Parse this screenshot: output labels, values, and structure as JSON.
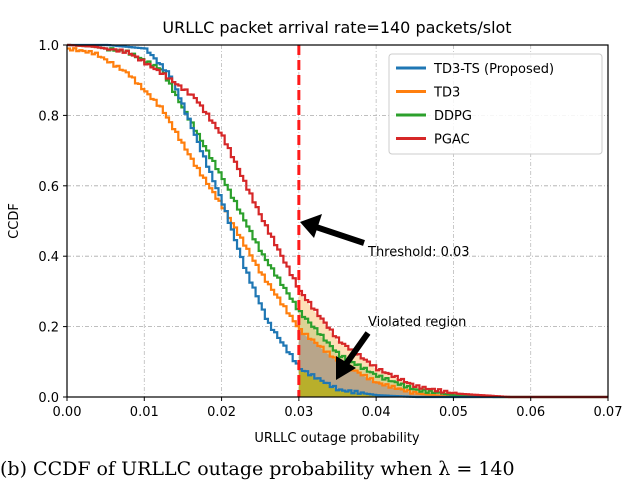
{
  "caption": "(b)  CCDF of URLLC outage probability when λ = 140",
  "chart_data": {
    "type": "line",
    "title": "URLLC packet arrival rate=140 packets/slot",
    "xlabel": "URLLC outage probability",
    "ylabel": "CCDF",
    "xlim": [
      0,
      0.07
    ],
    "ylim": [
      0,
      1.0
    ],
    "xticks": [
      "0.00",
      "0.01",
      "0.02",
      "0.03",
      "0.04",
      "0.05",
      "0.06",
      "0.07"
    ],
    "yticks": [
      "0.0",
      "0.2",
      "0.4",
      "0.6",
      "0.8",
      "1.0"
    ],
    "grid": true,
    "legend_position": "top-right",
    "threshold": 0.03,
    "annotations": {
      "threshold": "Threshold: 0.03",
      "violated": "Violated region"
    },
    "series": [
      {
        "name": "TD3-TS (Proposed)",
        "color": "#1f77b4",
        "x": [
          0,
          0.005,
          0.01,
          0.0133,
          0.0163,
          0.02,
          0.0228,
          0.0259,
          0.03,
          0.035,
          0.04,
          0.045,
          0.07
        ],
        "y": [
          1.0,
          1.0,
          0.99,
          0.91,
          0.75,
          0.55,
          0.37,
          0.21,
          0.08,
          0.02,
          0.005,
          0.0,
          0.0
        ]
      },
      {
        "name": "TD3",
        "color": "#ff7f0e",
        "x": [
          0,
          0.0034,
          0.0077,
          0.0121,
          0.0164,
          0.02,
          0.025,
          0.03,
          0.035,
          0.04,
          0.045,
          0.05,
          0.07
        ],
        "y": [
          0.99,
          0.977,
          0.92,
          0.82,
          0.66,
          0.54,
          0.35,
          0.19,
          0.1,
          0.04,
          0.01,
          0.0,
          0.0
        ]
      },
      {
        "name": "DDPG",
        "color": "#2ca02c",
        "x": [
          0,
          0.0034,
          0.0077,
          0.0121,
          0.0164,
          0.02,
          0.025,
          0.03,
          0.035,
          0.04,
          0.045,
          0.05,
          0.055,
          0.07
        ],
        "y": [
          1.0,
          0.995,
          0.98,
          0.93,
          0.76,
          0.62,
          0.41,
          0.24,
          0.12,
          0.06,
          0.02,
          0.005,
          0.0,
          0.0
        ]
      },
      {
        "name": "PGAC",
        "color": "#d62728",
        "x": [
          0,
          0.0034,
          0.0077,
          0.0121,
          0.0164,
          0.02,
          0.025,
          0.03,
          0.035,
          0.04,
          0.045,
          0.05,
          0.055,
          0.057,
          0.07
        ],
        "y": [
          1.0,
          0.995,
          0.98,
          0.92,
          0.85,
          0.74,
          0.51,
          0.3,
          0.16,
          0.08,
          0.03,
          0.01,
          0.003,
          0.0,
          0.0
        ]
      }
    ]
  }
}
